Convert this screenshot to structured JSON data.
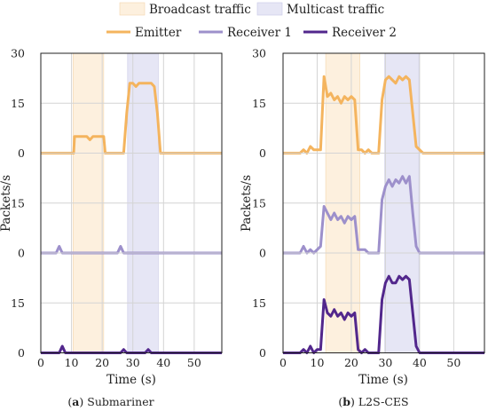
{
  "legend": {
    "bands": [
      {
        "label": "Broadcast traffic",
        "color": "#fdf0de"
      },
      {
        "label": "Multicast traffic",
        "color": "#e6e6f5"
      }
    ],
    "lines": [
      {
        "label": "Emitter",
        "color": "#f4b45e"
      },
      {
        "label": "Receiver 1",
        "color": "#9d90cb"
      },
      {
        "label": "Receiver 2",
        "color": "#52278c"
      }
    ]
  },
  "chart_data": [
    {
      "type": "line",
      "caption_letter": "a",
      "caption_text": "Submariner",
      "xlabel": "Time (s)",
      "ylabel": "Packets/s",
      "xlim": [
        0,
        59
      ],
      "xticks": [
        0,
        10,
        20,
        30,
        40,
        50
      ],
      "ylim_per_row": [
        0,
        30
      ],
      "yticks": [
        0,
        15,
        30
      ],
      "grid": true,
      "bands": [
        {
          "kind": "Broadcast traffic",
          "x": [
            10.5,
            20.5
          ]
        },
        {
          "kind": "Multicast traffic",
          "x": [
            28.3,
            38.3
          ]
        }
      ],
      "series": [
        {
          "name": "Emitter",
          "x": [
            0,
            5,
            10,
            10.7,
            11,
            15,
            16,
            17,
            20,
            20.5,
            21,
            27,
            28,
            29,
            30,
            31,
            32,
            33,
            34,
            35,
            36,
            37,
            38,
            39,
            40,
            59
          ],
          "y": [
            0,
            0,
            0,
            0,
            5,
            5,
            4,
            5,
            5,
            5,
            0,
            0,
            12,
            21,
            21,
            20,
            21,
            21,
            21,
            21,
            21,
            20,
            12,
            0,
            0,
            0
          ]
        },
        {
          "name": "Receiver 1",
          "x": [
            0,
            5,
            6,
            7,
            8,
            25,
            26,
            27,
            28,
            59
          ],
          "y": [
            0,
            0,
            2,
            0,
            0,
            0,
            2,
            0,
            0,
            0
          ]
        },
        {
          "name": "Receiver 2",
          "x": [
            0,
            6,
            7,
            8,
            26,
            27,
            28,
            34,
            35,
            36,
            59
          ],
          "y": [
            0,
            0,
            2,
            0,
            0,
            1,
            0,
            0,
            1,
            0,
            0
          ]
        }
      ]
    },
    {
      "type": "line",
      "caption_letter": "b",
      "caption_text": "L2S-CES",
      "xlabel": "Time (s)",
      "ylabel": "Packets/s",
      "xlim": [
        0,
        59
      ],
      "xticks": [
        0,
        10,
        20,
        30,
        40,
        50
      ],
      "ylim_per_row": [
        0,
        30
      ],
      "yticks": [
        0,
        15,
        30
      ],
      "grid": true,
      "bands": [
        {
          "kind": "Broadcast traffic",
          "x": [
            12.5,
            22.5
          ]
        },
        {
          "kind": "Multicast traffic",
          "x": [
            29.8,
            39.8
          ]
        }
      ],
      "series": [
        {
          "name": "Emitter",
          "x": [
            0,
            5,
            6,
            7,
            8,
            9,
            10,
            11,
            12,
            13,
            14,
            15,
            16,
            17,
            18,
            19,
            20,
            21,
            22,
            23,
            24,
            25,
            26,
            27,
            28,
            29,
            30,
            31,
            32,
            33,
            34,
            35,
            36,
            37,
            38,
            39,
            40,
            41,
            42,
            59
          ],
          "y": [
            0,
            0,
            1,
            0,
            2,
            1,
            1,
            1,
            23,
            17,
            18,
            16,
            17,
            15,
            17,
            16,
            17,
            16,
            1,
            1,
            0,
            1,
            0,
            0,
            0,
            16,
            22,
            23,
            22,
            21,
            23,
            22,
            23,
            22,
            12,
            2,
            1,
            0,
            0,
            0
          ]
        },
        {
          "name": "Receiver 1",
          "x": [
            0,
            5,
            6,
            7,
            8,
            9,
            10,
            11,
            12,
            13,
            14,
            15,
            16,
            17,
            18,
            19,
            20,
            21,
            22,
            23,
            24,
            25,
            26,
            27,
            28,
            29,
            30,
            31,
            32,
            33,
            34,
            35,
            36,
            37,
            38,
            39,
            40,
            41,
            59
          ],
          "y": [
            0,
            0,
            2,
            0,
            1,
            0,
            1,
            2,
            14,
            12,
            10,
            12,
            10,
            11,
            9,
            11,
            10,
            11,
            1,
            1,
            1,
            0,
            0,
            0,
            0,
            16,
            20,
            22,
            20,
            22,
            21,
            23,
            21,
            23,
            12,
            2,
            0,
            0,
            0
          ]
        },
        {
          "name": "Receiver 2",
          "x": [
            0,
            5,
            6,
            7,
            8,
            9,
            10,
            11,
            12,
            13,
            14,
            15,
            16,
            17,
            18,
            19,
            20,
            21,
            22,
            23,
            24,
            25,
            26,
            27,
            28,
            29,
            30,
            31,
            32,
            33,
            34,
            35,
            36,
            37,
            38,
            39,
            40,
            41,
            59
          ],
          "y": [
            0,
            0,
            1,
            0,
            2,
            0,
            1,
            1,
            16,
            12,
            11,
            13,
            11,
            12,
            10,
            12,
            11,
            12,
            1,
            0,
            1,
            0,
            0,
            0,
            0,
            16,
            21,
            23,
            21,
            21,
            23,
            22,
            23,
            22,
            12,
            2,
            0,
            0,
            0
          ]
        }
      ]
    }
  ]
}
